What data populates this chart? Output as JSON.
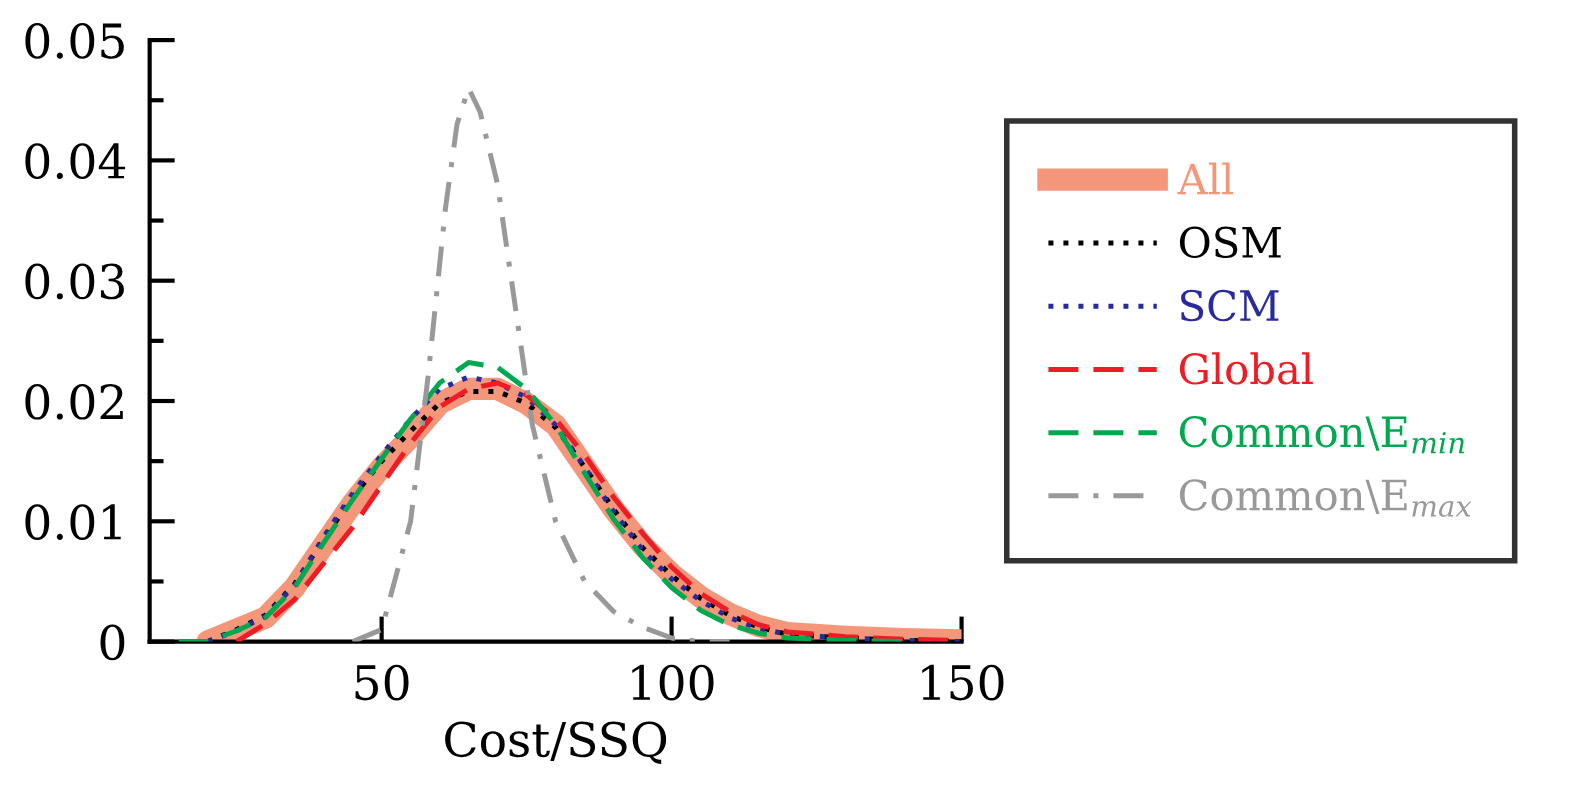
{
  "chart_data": {
    "type": "line",
    "xlabel": "Cost/SSQ",
    "xlim": [
      10,
      150
    ],
    "xticks": [
      50,
      100,
      150
    ],
    "ylim": [
      0,
      0.05
    ],
    "yticks": [
      0,
      {
        "value": 0.005,
        "label": null
      },
      0.01,
      {
        "value": 0.015,
        "label": null
      },
      0.02,
      {
        "value": 0.025,
        "label": null
      },
      0.03,
      {
        "value": 0.035,
        "label": null
      },
      0.04,
      {
        "value": 0.045,
        "label": null
      },
      0.05
    ],
    "grid": false,
    "legend": "right",
    "marker": "none",
    "series": [
      {
        "name": "All",
        "color": "#f4967a",
        "line_style": "solid",
        "x": [
          20,
          25,
          30,
          35,
          40,
          45,
          50,
          55,
          60,
          65,
          70,
          75,
          80,
          85,
          90,
          95,
          100,
          105,
          110,
          115,
          120,
          130,
          140,
          150
        ],
        "values": [
          0,
          0.001,
          0.002,
          0.0045,
          0.008,
          0.0115,
          0.0145,
          0.017,
          0.0198,
          0.021,
          0.021,
          0.0198,
          0.018,
          0.0145,
          0.011,
          0.008,
          0.0056,
          0.0037,
          0.0023,
          0.0013,
          0.0007,
          0.0004,
          0.0002,
          0.0001
        ]
      },
      {
        "name": "OSM",
        "color": "#000000",
        "line_style": "dotted",
        "x": [
          20,
          25,
          30,
          35,
          40,
          45,
          50,
          55,
          60,
          65,
          70,
          75,
          80,
          85,
          90,
          95,
          100,
          105,
          110,
          115,
          120,
          130,
          140,
          150
        ],
        "values": [
          0,
          0.001,
          0.0022,
          0.0048,
          0.0085,
          0.012,
          0.015,
          0.0175,
          0.0198,
          0.0208,
          0.0208,
          0.0198,
          0.0178,
          0.0145,
          0.011,
          0.0078,
          0.0055,
          0.0036,
          0.0022,
          0.0012,
          0.0006,
          0.0003,
          0.0001,
          0
        ]
      },
      {
        "name": "SCM",
        "color": "#2a2aa0",
        "line_style": "dotted",
        "x": [
          20,
          25,
          30,
          35,
          40,
          45,
          50,
          55,
          60,
          65,
          70,
          75,
          80,
          85,
          90,
          95,
          100,
          105,
          110,
          115,
          120,
          130,
          140,
          150
        ],
        "values": [
          0,
          0.0009,
          0.0021,
          0.0047,
          0.0087,
          0.0123,
          0.0155,
          0.0185,
          0.021,
          0.022,
          0.0215,
          0.0203,
          0.018,
          0.0145,
          0.0108,
          0.0076,
          0.0052,
          0.0034,
          0.002,
          0.0011,
          0.0006,
          0.0003,
          0.0001,
          0
        ]
      },
      {
        "name": "Global",
        "color": "#ee1c25",
        "line_style": "dashed",
        "x": [
          25,
          30,
          35,
          40,
          45,
          50,
          55,
          60,
          65,
          70,
          75,
          80,
          85,
          90,
          95,
          100,
          105,
          110,
          115,
          120,
          130,
          140,
          148
        ],
        "values": [
          0,
          0.0015,
          0.0035,
          0.0065,
          0.0095,
          0.013,
          0.0165,
          0.0195,
          0.021,
          0.0215,
          0.0205,
          0.0185,
          0.0155,
          0.012,
          0.009,
          0.0062,
          0.004,
          0.0025,
          0.0014,
          0.0008,
          0.0004,
          0.0002,
          0.0001
        ]
      },
      {
        "name": "Common\\E$_{min}$",
        "color": "#00a84f",
        "line_style": "dashed",
        "x": [
          15,
          20,
          25,
          30,
          35,
          40,
          45,
          50,
          55,
          60,
          65,
          70,
          75,
          80,
          85,
          90,
          95,
          100,
          105,
          110,
          115,
          120,
          130,
          140
        ],
        "values": [
          0,
          0,
          0.0009,
          0.002,
          0.0045,
          0.0082,
          0.0118,
          0.0152,
          0.0185,
          0.0215,
          0.0232,
          0.0228,
          0.021,
          0.018,
          0.014,
          0.0102,
          0.007,
          0.0045,
          0.0026,
          0.0014,
          0.0007,
          0.0003,
          0.0001,
          0
        ]
      },
      {
        "name": "Common\\E$_{max}$",
        "color": "#999999",
        "line_style": "dashdot",
        "x": [
          45,
          50,
          55,
          58,
          61,
          63,
          65,
          67,
          70,
          73,
          76,
          80,
          85,
          90,
          95,
          100,
          105,
          110
        ],
        "values": [
          0,
          0.001,
          0.01,
          0.022,
          0.036,
          0.043,
          0.046,
          0.044,
          0.038,
          0.028,
          0.018,
          0.01,
          0.005,
          0.0025,
          0.0012,
          0.0003,
          0,
          0
        ]
      }
    ]
  }
}
